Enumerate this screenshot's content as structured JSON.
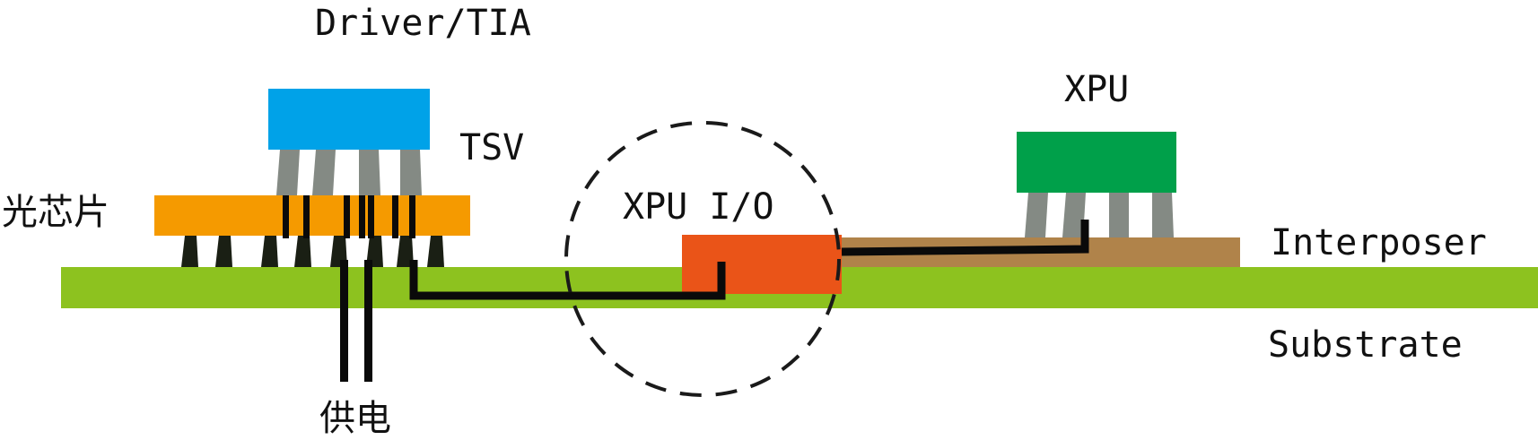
{
  "labels": {
    "driver_tia": "Driver/TIA",
    "tsv": "TSV",
    "optical_chip": "光芯片",
    "xpu_io": "XPU I/O",
    "xpu": "XPU",
    "interposer": "Interposer",
    "substrate": "Substrate",
    "power_supply": "供电"
  },
  "colors": {
    "driver_tia": "#00a2e8",
    "optical_chip": "#f59a00",
    "xpu": "#00a04a",
    "xpu_io_block": "#ea5418",
    "interposer": "#b0834a",
    "substrate": "#8dc21f",
    "pillar_gray": "#848a84",
    "bump_dark": "#1a1f14",
    "wire": "#0a0a0a",
    "dashed_circle": "#1a1a1a"
  }
}
